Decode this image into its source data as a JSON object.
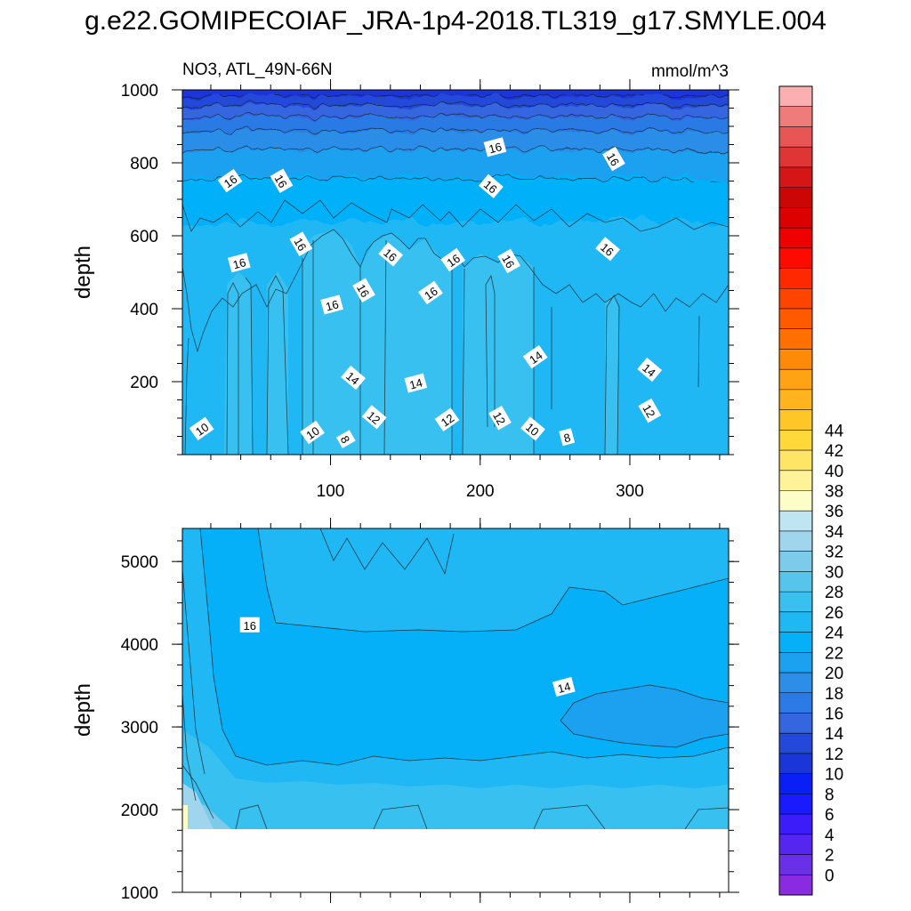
{
  "title": "g.e22.GOMIPECOIAF_JRA-1p4-2018.TL319_g17.SMYLE.004",
  "chart_data": [
    {
      "type": "contour",
      "left_string": "NO3, ATL_49N-66N",
      "right_string": "mmol/m^3",
      "xlabel": "",
      "ylabel": "depth",
      "xlim": [
        1,
        366
      ],
      "ylim": [
        1000,
        0
      ],
      "x_ticks": [
        100,
        200,
        300
      ],
      "y_ticks": [
        200,
        400,
        600,
        800,
        1000
      ],
      "contour_labels": [
        {
          "x": 14,
          "y": 70,
          "text": "10"
        },
        {
          "x": 88,
          "y": 60,
          "text": "10"
        },
        {
          "x": 110,
          "y": 42,
          "text": "8"
        },
        {
          "x": 129,
          "y": 102,
          "text": "12"
        },
        {
          "x": 178,
          "y": 95,
          "text": "12"
        },
        {
          "x": 213,
          "y": 100,
          "text": "12"
        },
        {
          "x": 235,
          "y": 70,
          "text": "10"
        },
        {
          "x": 258,
          "y": 47,
          "text": "8"
        },
        {
          "x": 313,
          "y": 120,
          "text": "12"
        },
        {
          "x": 115,
          "y": 210,
          "text": "14"
        },
        {
          "x": 157,
          "y": 195,
          "text": "14"
        },
        {
          "x": 237,
          "y": 267,
          "text": "14"
        },
        {
          "x": 313,
          "y": 232,
          "text": "14"
        },
        {
          "x": 101,
          "y": 410,
          "text": "16"
        },
        {
          "x": 122,
          "y": 450,
          "text": "16"
        },
        {
          "x": 167,
          "y": 443,
          "text": "16"
        },
        {
          "x": 39,
          "y": 525,
          "text": "16"
        },
        {
          "x": 80,
          "y": 577,
          "text": "16"
        },
        {
          "x": 140,
          "y": 548,
          "text": "16"
        },
        {
          "x": 182,
          "y": 533,
          "text": "16"
        },
        {
          "x": 219,
          "y": 530,
          "text": "16"
        },
        {
          "x": 285,
          "y": 563,
          "text": "16"
        },
        {
          "x": 33,
          "y": 750,
          "text": "16"
        },
        {
          "x": 67,
          "y": 750,
          "text": "16"
        },
        {
          "x": 207,
          "y": 735,
          "text": "16"
        },
        {
          "x": 210,
          "y": 842,
          "text": "16"
        },
        {
          "x": 289,
          "y": 810,
          "text": "16"
        }
      ]
    },
    {
      "type": "contour",
      "xlabel": "",
      "ylabel": "depth",
      "xlim": [
        1,
        366
      ],
      "ylim": [
        5400,
        1000
      ],
      "x_ticks": [
        100,
        200,
        300
      ],
      "y_ticks": [
        1000,
        2000,
        3000,
        4000,
        5000
      ],
      "contour_labels": [
        {
          "x": 46,
          "y": 4230,
          "text": "16"
        },
        {
          "x": 256,
          "y": 3480,
          "text": "14"
        }
      ]
    }
  ],
  "colorbar": {
    "labels": [
      "44",
      "42",
      "40",
      "38",
      "36",
      "34",
      "32",
      "30",
      "28",
      "26",
      "24",
      "22",
      "20",
      "18",
      "16",
      "14",
      "12",
      "10",
      "8",
      "6",
      "4",
      "2",
      "0"
    ],
    "colors": [
      "#8a2be2",
      "#6a30e8",
      "#5526f0",
      "#3c1cf8",
      "#1a1aff",
      "#0a1ff5",
      "#1a35d8",
      "#2448d9",
      "#3566e0",
      "#2b7ae6",
      "#2c8ee8",
      "#1ca0f0",
      "#06b0f8",
      "#1fb8f4",
      "#38c0f0",
      "#57c4ec",
      "#7ccbea",
      "#9fd6ee",
      "#bfe4f2",
      "#fdfdc8",
      "#fff299",
      "#ffe566",
      "#ffd83a",
      "#ffc628",
      "#ffb41e",
      "#ffa214",
      "#ff8a0a",
      "#ff7000",
      "#ff5a00",
      "#ff4400",
      "#ff2800",
      "#ff0a00",
      "#ee0000",
      "#dc0000",
      "#cc0505",
      "#d61616",
      "#e03535",
      "#e85555",
      "#f07b7b",
      "#fab0b0"
    ]
  }
}
